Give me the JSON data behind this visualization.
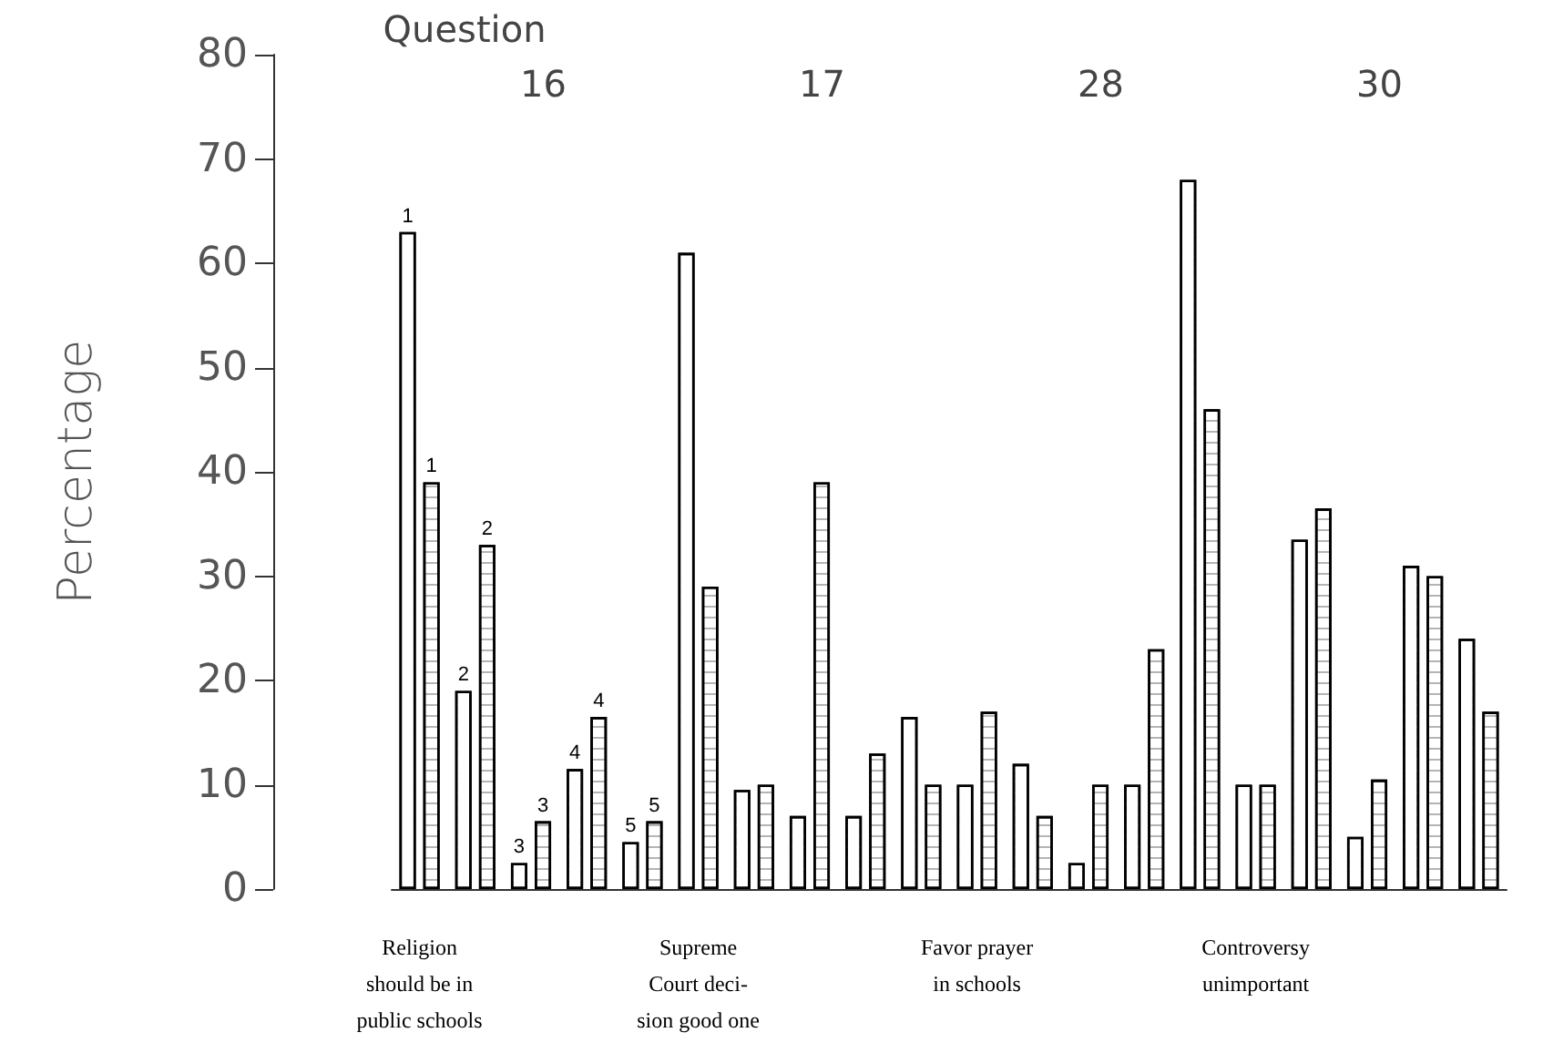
{
  "chart_data": {
    "type": "bar",
    "ylabel": "Percentage",
    "categories": [
      "Religion\nshould be in\npublic schools",
      null,
      null,
      null,
      null,
      "Supreme\nCourt deci-\nsion good one",
      null,
      null,
      null,
      null,
      "Favor prayer\nin schools",
      null,
      null,
      null,
      null,
      "Controversy\nunimportant",
      null,
      null,
      null,
      null
    ],
    "series": [
      {
        "color": "#ffffff",
        "values": [
          63,
          19,
          2.5,
          11.5,
          4.5,
          61,
          9.5,
          7,
          7,
          16.5,
          10,
          12,
          2.5,
          10,
          68,
          10,
          33.5,
          5,
          31,
          24
        ]
      },
      {
        "color": "#000000",
        "values": [
          39,
          33,
          6.5,
          16.5,
          6.5,
          29,
          10,
          39,
          13,
          10,
          17,
          7,
          10,
          23,
          46,
          10,
          36.5,
          10.5,
          30,
          17
        ]
      }
    ],
    "ylim": [
      0,
      80
    ],
    "yticks": [
      0,
      10,
      20,
      30,
      40,
      50,
      60,
      70,
      80
    ],
    "grid": false,
    "annotations": [
      "Question",
      "16",
      "17",
      "28",
      "30",
      {
        "text": "1",
        "y": 63
      },
      {
        "text": "1",
        "y": 39
      },
      {
        "text": "2",
        "y": 19
      },
      {
        "text": "2",
        "y": 33
      },
      {
        "text": "3",
        "y": 2.5
      },
      {
        "text": "3",
        "y": 6.5
      },
      {
        "text": "4",
        "y": 11.5
      },
      {
        "text": "4",
        "y": 16.5
      },
      {
        "text": "5",
        "y": 4.5
      },
      {
        "text": "5",
        "y": 6.5
      }
    ]
  }
}
